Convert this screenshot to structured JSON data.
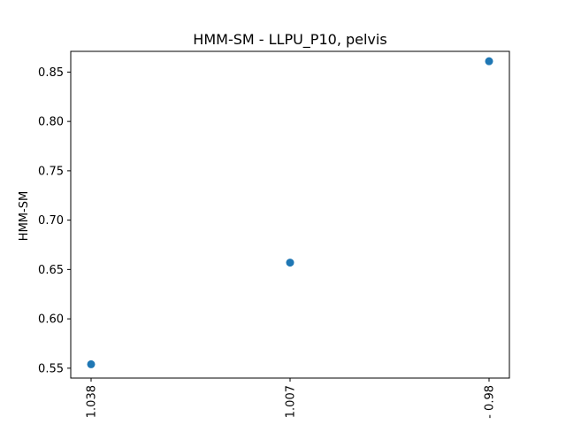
{
  "chart_data": {
    "type": "scatter",
    "title": "HMM-SM - LLPU_P10, pelvis",
    "xlabel": "",
    "ylabel": "HMM-SM",
    "categories": [
      "1.038",
      "1.007",
      "- 0.98"
    ],
    "values": [
      0.554,
      0.657,
      0.861
    ],
    "ylim": [
      0.54,
      0.871
    ],
    "yticks": [
      0.55,
      0.6,
      0.65,
      0.7,
      0.75,
      0.8,
      0.85
    ],
    "ytick_labels": [
      "0.55",
      "0.60",
      "0.65",
      "0.70",
      "0.75",
      "0.80",
      "0.85"
    ],
    "grid": false,
    "legend": "none",
    "marker_color": "#1f77b4"
  }
}
